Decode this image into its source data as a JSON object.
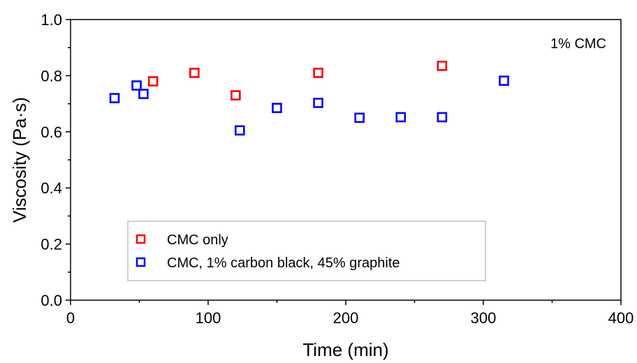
{
  "chart_data": {
    "type": "scatter",
    "xlabel": "Time (min)",
    "ylabel": "Viscosity (Pa·s)",
    "annotation": "1% CMC",
    "xlim": [
      0,
      400
    ],
    "ylim": [
      0,
      1.0
    ],
    "xticks": [
      0,
      100,
      200,
      300,
      400
    ],
    "yticks": [
      0.0,
      0.2,
      0.4,
      0.6,
      0.8,
      1.0
    ],
    "xtick_labels": [
      "0",
      "100",
      "200",
      "300",
      "400"
    ],
    "ytick_labels": [
      "0.0",
      "0.2",
      "0.4",
      "0.6",
      "0.8",
      "1.0"
    ],
    "legend_position": "bottom-left",
    "series": [
      {
        "name": "CMC only",
        "color": "#ff0000",
        "marker": "open-square",
        "points": [
          [
            60,
            0.78
          ],
          [
            90,
            0.81
          ],
          [
            120,
            0.73
          ],
          [
            180,
            0.81
          ],
          [
            270,
            0.835
          ]
        ]
      },
      {
        "name": "CMC, 1% carbon black, 45% graphite",
        "color": "#0000ff",
        "marker": "open-square",
        "points": [
          [
            32,
            0.72
          ],
          [
            48,
            0.765
          ],
          [
            53,
            0.735
          ],
          [
            123,
            0.605
          ],
          [
            150,
            0.685
          ],
          [
            180,
            0.703
          ],
          [
            210,
            0.65
          ],
          [
            240,
            0.652
          ],
          [
            270,
            0.652
          ],
          [
            315,
            0.782
          ]
        ]
      }
    ]
  }
}
